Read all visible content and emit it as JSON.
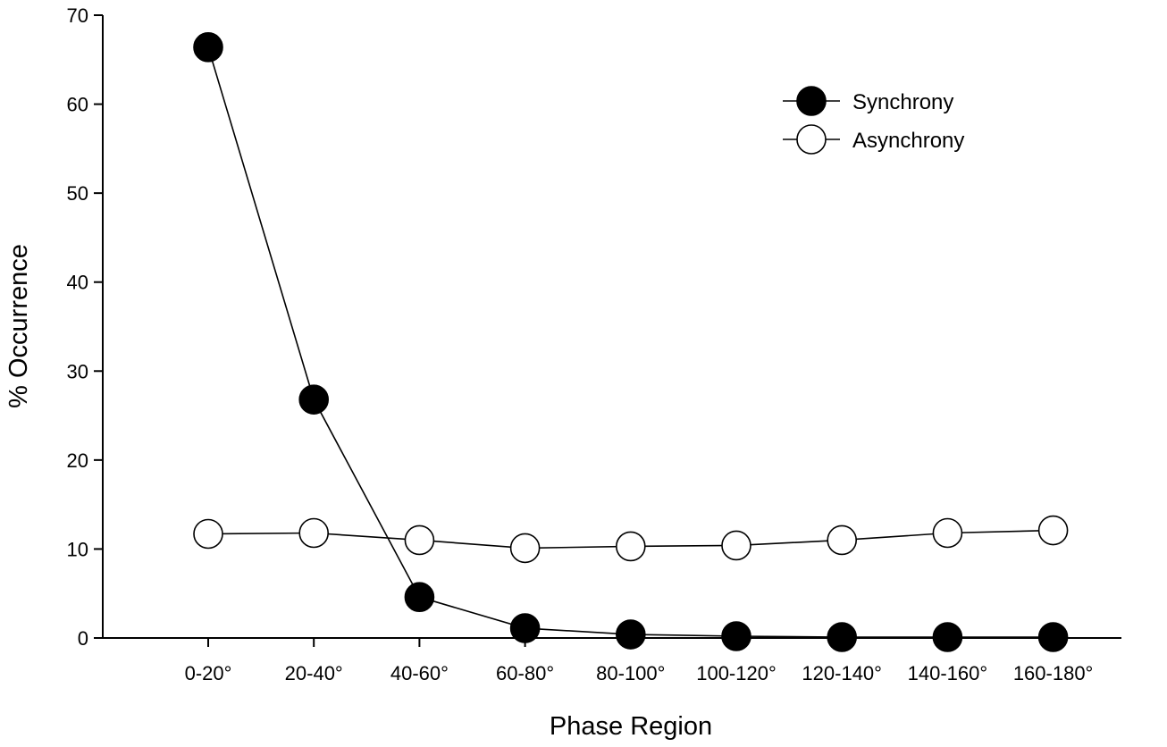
{
  "chart_data": {
    "type": "line",
    "xlabel": "Phase Region",
    "ylabel": "% Occurrence",
    "categories": [
      "0-20°",
      "20-40°",
      "40-60°",
      "60-80°",
      "80-100°",
      "100-120°",
      "120-140°",
      "140-160°",
      "160-180°"
    ],
    "ylim": [
      0,
      70
    ],
    "yticks": [
      0,
      10,
      20,
      30,
      40,
      50,
      60,
      70
    ],
    "grid": false,
    "legend_position": "top-right",
    "series": [
      {
        "name": "Synchrony",
        "marker": "filled-circle",
        "color": "#000000",
        "values": [
          66.4,
          26.8,
          4.6,
          1.1,
          0.4,
          0.2,
          0.1,
          0.1,
          0.1
        ]
      },
      {
        "name": "Asynchrony",
        "marker": "open-circle",
        "color": "#000000",
        "values": [
          11.7,
          11.8,
          11.0,
          10.1,
          10.3,
          10.4,
          11.0,
          11.8,
          12.1
        ]
      }
    ]
  }
}
